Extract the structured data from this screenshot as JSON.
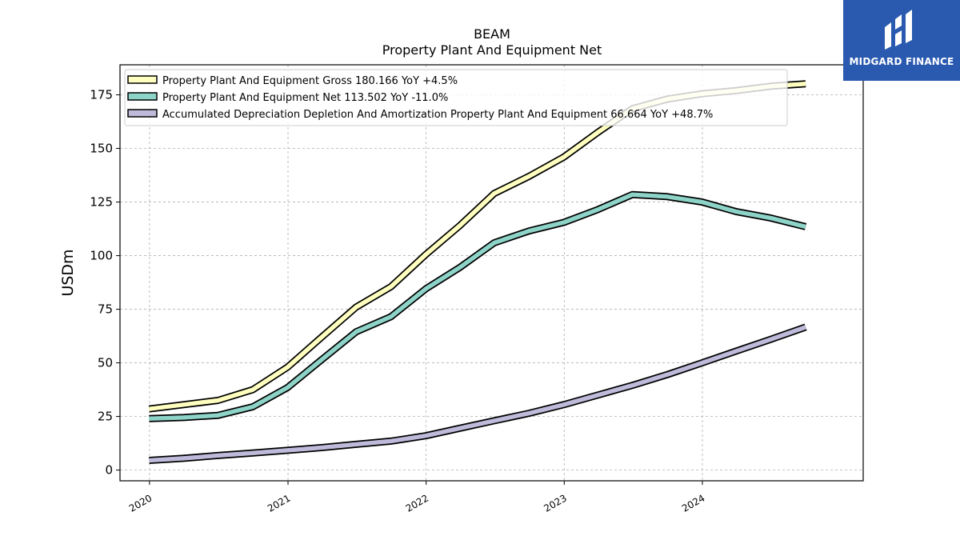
{
  "brand": {
    "name": "MIDGARD FINANCE",
    "bg_color": "#2a5ab0",
    "icon": "midgard-m-logo-icon"
  },
  "chart_data": {
    "type": "line",
    "title": "BEAM",
    "subtitle": "Property Plant And Equipment Net",
    "ylabel": "USDm",
    "xlabel": "",
    "x_ticks": [
      "2020",
      "2021",
      "2022",
      "2023",
      "2024"
    ],
    "y_ticks": [
      0,
      25,
      50,
      75,
      100,
      125,
      150,
      175
    ],
    "xlim": [
      "2019-10-15",
      "2025-03-01"
    ],
    "ylim": [
      -5,
      189
    ],
    "grid": true,
    "legend_position": "top-left",
    "x": [
      "2019-12-31",
      "2020-03-31",
      "2020-06-30",
      "2020-09-30",
      "2020-12-31",
      "2021-03-31",
      "2021-06-30",
      "2021-09-30",
      "2021-12-31",
      "2022-03-31",
      "2022-06-30",
      "2022-09-30",
      "2022-12-31",
      "2023-03-31",
      "2023-06-30",
      "2023-09-30",
      "2023-12-31",
      "2024-03-31",
      "2024-06-30",
      "2024-09-30"
    ],
    "series": [
      {
        "name": "Property Plant And Equipment Gross",
        "legend_label": "Property Plant And Equipment Gross  180.166 YoY +4.5%",
        "color": "#ffffbf",
        "values": [
          28.5,
          30.5,
          32.5,
          37.5,
          48.0,
          62.0,
          76.0,
          85.5,
          100.5,
          114.0,
          129.0,
          137.0,
          146.0,
          157.5,
          168.5,
          173.0,
          175.5,
          177.0,
          179.0,
          180.166
        ]
      },
      {
        "name": "Property Plant And Equipment Net",
        "legend_label": "Property Plant And Equipment Net  113.502 YoY -11.0%",
        "color": "#8dd3c7",
        "values": [
          24.0,
          24.5,
          25.5,
          29.5,
          38.5,
          51.5,
          64.5,
          71.5,
          84.5,
          94.5,
          106.0,
          111.5,
          115.5,
          121.5,
          128.5,
          127.5,
          125.0,
          120.5,
          117.5,
          113.502
        ]
      },
      {
        "name": "Accumulated Depreciation Depletion And Amortization Property Plant And Equipment",
        "legend_label": "Accumulated Depreciation Depletion And Amortization Property Plant And Equipment  66.664 YoY +48.7%",
        "color": "#bebada",
        "values": [
          4.5,
          5.5,
          6.8,
          8.0,
          9.2,
          10.5,
          12.0,
          13.5,
          16.0,
          19.5,
          23.0,
          26.5,
          30.5,
          35.0,
          39.5,
          44.5,
          50.0,
          55.5,
          61.0,
          66.664
        ]
      }
    ]
  }
}
